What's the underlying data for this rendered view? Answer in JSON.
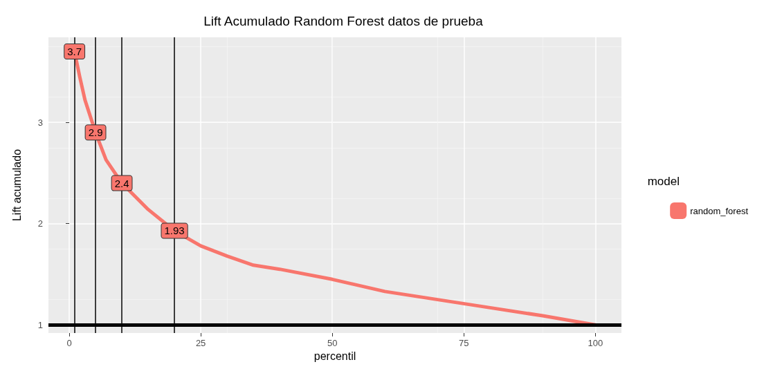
{
  "chart_data": {
    "type": "line",
    "title": "Lift Acumulado Random Forest datos de prueba",
    "xlabel": "percentil",
    "ylabel": "Lift acumulado",
    "legend_title": "model",
    "series": [
      {
        "name": "random_forest",
        "color": "#f8766d",
        "x": [
          1,
          2,
          3,
          5,
          7,
          10,
          15,
          20,
          25,
          30,
          35,
          40,
          50,
          60,
          70,
          80,
          90,
          100
        ],
        "values": [
          3.7,
          3.45,
          3.22,
          2.9,
          2.63,
          2.4,
          2.14,
          1.93,
          1.78,
          1.68,
          1.59,
          1.55,
          1.45,
          1.33,
          1.25,
          1.17,
          1.09,
          1.0
        ]
      }
    ],
    "annotations": [
      {
        "text": "3.7",
        "x": 1,
        "y": 3.7
      },
      {
        "text": "2.9",
        "x": 5,
        "y": 2.9
      },
      {
        "text": "2.4",
        "x": 10,
        "y": 2.4
      },
      {
        "text": "1.93",
        "x": 20,
        "y": 1.93
      }
    ],
    "ref_lines": [
      {
        "axis": "x",
        "value": 1,
        "color": "#000000"
      },
      {
        "axis": "x",
        "value": 5,
        "color": "#000000"
      },
      {
        "axis": "x",
        "value": 10,
        "color": "#000000"
      },
      {
        "axis": "x",
        "value": 20,
        "color": "#000000"
      },
      {
        "axis": "y",
        "value": 1,
        "color": "#000000"
      }
    ],
    "xlim": [
      -3.95,
      104.95
    ],
    "ylim": [
      0.92,
      3.84
    ],
    "xticks": [
      0,
      25,
      50,
      75,
      100
    ],
    "yticks": [
      1,
      2,
      3
    ],
    "grid": true,
    "legend": "right",
    "line_style": "solid",
    "marker": "none"
  }
}
